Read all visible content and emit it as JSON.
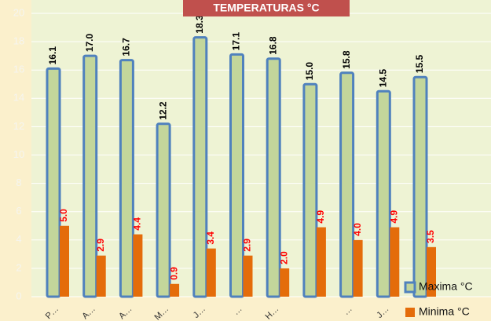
{
  "chart_data": {
    "type": "bar",
    "title": "TEMPERATURAS °C",
    "categories": [
      "P…",
      "A…",
      "A…",
      "M…",
      "J…",
      "…",
      "H…",
      null,
      "…",
      "J…",
      null
    ],
    "series": [
      {
        "name": "Maxima °C",
        "color": "#c3d69b",
        "edge": "#4f81bd",
        "values": [
          16.1,
          17.0,
          16.7,
          12.2,
          18.3,
          17.1,
          16.8,
          15.0,
          15.8,
          14.5,
          15.5
        ],
        "value_labels": [
          "16.1",
          "17.0",
          "16.7",
          "12.2",
          "18.3",
          "17.1",
          "16.8",
          "15.0",
          "15.8",
          "14.5",
          "15.5"
        ],
        "label_color": "#000000"
      },
      {
        "name": "Minima °C",
        "color": "#e46c0a",
        "values": [
          5.0,
          2.9,
          4.4,
          0.9,
          3.4,
          2.9,
          2.0,
          4.9,
          4.0,
          4.9,
          3.5
        ],
        "value_labels": [
          "5.0",
          "2.9",
          "4.4",
          "0.9",
          "3.4",
          "2.9",
          "2.0",
          "4.9",
          "4.0",
          "4.9",
          "3.5"
        ],
        "label_color": "#ff0000"
      }
    ],
    "ylim": [
      0,
      20
    ],
    "yticks": [
      0,
      2,
      4,
      6,
      8,
      10,
      12,
      14,
      16,
      18,
      20
    ],
    "grid": true,
    "legend": "bottom-right"
  }
}
